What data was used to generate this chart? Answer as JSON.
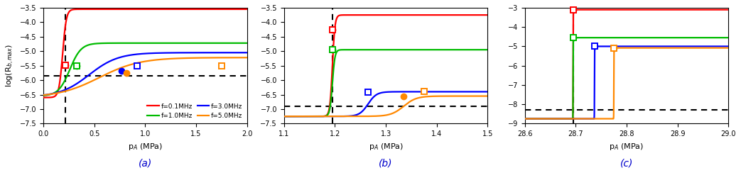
{
  "panels": [
    {
      "label": "(a)",
      "xlim": [
        0.0,
        2.0
      ],
      "ylim": [
        -7.5,
        -3.5
      ],
      "xticks": [
        0.0,
        0.5,
        1.0,
        1.5,
        2.0
      ],
      "yticks": [
        -7.5,
        -7.0,
        -6.5,
        -6.0,
        -5.5,
        -5.0,
        -4.5,
        -4.0,
        -3.5
      ],
      "vline_x": 0.22,
      "hline_y": -5.85,
      "show_ylabel": true,
      "show_legend": true,
      "curves": [
        {
          "color": "#ff0000",
          "x_rise": 0.19,
          "k": 55,
          "y_low": -6.6,
          "y_high": -3.55,
          "circle_x": 0.22,
          "circle_y": -5.48,
          "square_x": 0.22,
          "square_y": -5.48
        },
        {
          "color": "#00bb00",
          "x_rise": 0.26,
          "k": 18,
          "y_low": -6.55,
          "y_high": -4.72,
          "circle_x": 0.33,
          "circle_y": -5.52,
          "square_x": 0.33,
          "square_y": -5.52
        },
        {
          "color": "#0000ff",
          "x_rise": 0.45,
          "k": 7,
          "y_low": -6.58,
          "y_high": -5.05,
          "circle_x": 0.77,
          "circle_y": -5.68,
          "square_x": 0.92,
          "square_y": -5.52
        },
        {
          "color": "#ff8800",
          "x_rise": 0.55,
          "k": 5,
          "y_low": -6.6,
          "y_high": -5.22,
          "circle_x": 0.82,
          "circle_y": -5.75,
          "square_x": 1.75,
          "square_y": -5.52
        }
      ]
    },
    {
      "label": "(b)",
      "xlim": [
        1.1,
        1.5
      ],
      "ylim": [
        -7.5,
        -3.5
      ],
      "xticks": [
        1.1,
        1.2,
        1.3,
        1.4,
        1.5
      ],
      "yticks": [
        -7.5,
        -7.0,
        -6.5,
        -6.0,
        -5.5,
        -5.0,
        -4.5,
        -4.0,
        -3.5
      ],
      "vline_x": 1.195,
      "hline_y": -6.9,
      "show_ylabel": true,
      "show_legend": false,
      "curves": [
        {
          "color": "#ff0000",
          "x_rise": 1.195,
          "k": 400,
          "y_low": -7.25,
          "y_high": -3.75,
          "circle_x": 1.195,
          "circle_y": -4.27,
          "square_x": 1.195,
          "square_y": -4.27
        },
        {
          "color": "#00bb00",
          "x_rise": 1.195,
          "k": 400,
          "y_low": -7.25,
          "y_high": -4.95,
          "circle_x": 1.195,
          "circle_y": -4.95,
          "square_x": 1.195,
          "square_y": -4.95
        },
        {
          "color": "#0000ff",
          "x_rise": 1.265,
          "k": 120,
          "y_low": -7.25,
          "y_high": -6.4,
          "circle_x": null,
          "circle_y": null,
          "square_x": 1.265,
          "square_y": -6.42
        },
        {
          "color": "#ff8800",
          "x_rise": 1.335,
          "k": 80,
          "y_low": -7.25,
          "y_high": -6.55,
          "circle_x": 1.335,
          "circle_y": -6.56,
          "square_x": 1.375,
          "square_y": -6.38
        }
      ]
    },
    {
      "label": "(c)",
      "xlim": [
        28.6,
        29.0
      ],
      "ylim": [
        -9.0,
        -3.0
      ],
      "xticks": [
        28.6,
        28.7,
        28.8,
        28.9,
        29.0
      ],
      "yticks": [
        -9.0,
        -8.0,
        -7.0,
        -6.0,
        -5.0,
        -4.0,
        -3.0
      ],
      "vline_x": 28.695,
      "hline_y": -8.3,
      "show_ylabel": true,
      "show_legend": false,
      "curves": [
        {
          "color": "#ff0000",
          "x_rise": 28.695,
          "k": 8000,
          "y_low": -8.75,
          "y_high": -3.1,
          "circle_x": 28.695,
          "circle_y": -3.1,
          "square_x": 28.695,
          "square_y": -3.1
        },
        {
          "color": "#00bb00",
          "x_rise": 28.695,
          "k": 8000,
          "y_low": -8.75,
          "y_high": -4.55,
          "circle_x": 28.695,
          "circle_y": -4.55,
          "square_x": 28.695,
          "square_y": -4.55
        },
        {
          "color": "#0000ff",
          "x_rise": 28.737,
          "k": 8000,
          "y_low": -8.75,
          "y_high": -5.0,
          "circle_x": 28.737,
          "circle_y": -5.0,
          "square_x": 28.737,
          "square_y": -5.0
        },
        {
          "color": "#ff8800",
          "x_rise": 28.775,
          "k": 8000,
          "y_low": -8.75,
          "y_high": -5.08,
          "circle_x": 28.775,
          "circle_y": -5.08,
          "square_x": 28.775,
          "square_y": -5.08
        }
      ]
    }
  ],
  "legend_entries": [
    {
      "label": "f=0.1MHz",
      "color": "#ff0000"
    },
    {
      "label": "f=1.0MHz",
      "color": "#00bb00"
    },
    {
      "label": "f=3.0MHz",
      "color": "#0000ff"
    },
    {
      "label": "f=5.0MHz",
      "color": "#ff8800"
    }
  ],
  "ylabel": "log(R$_{b,max}$)",
  "xlabel": "p$_A$ (MPa)",
  "marker_size": 6,
  "line_width": 1.6
}
